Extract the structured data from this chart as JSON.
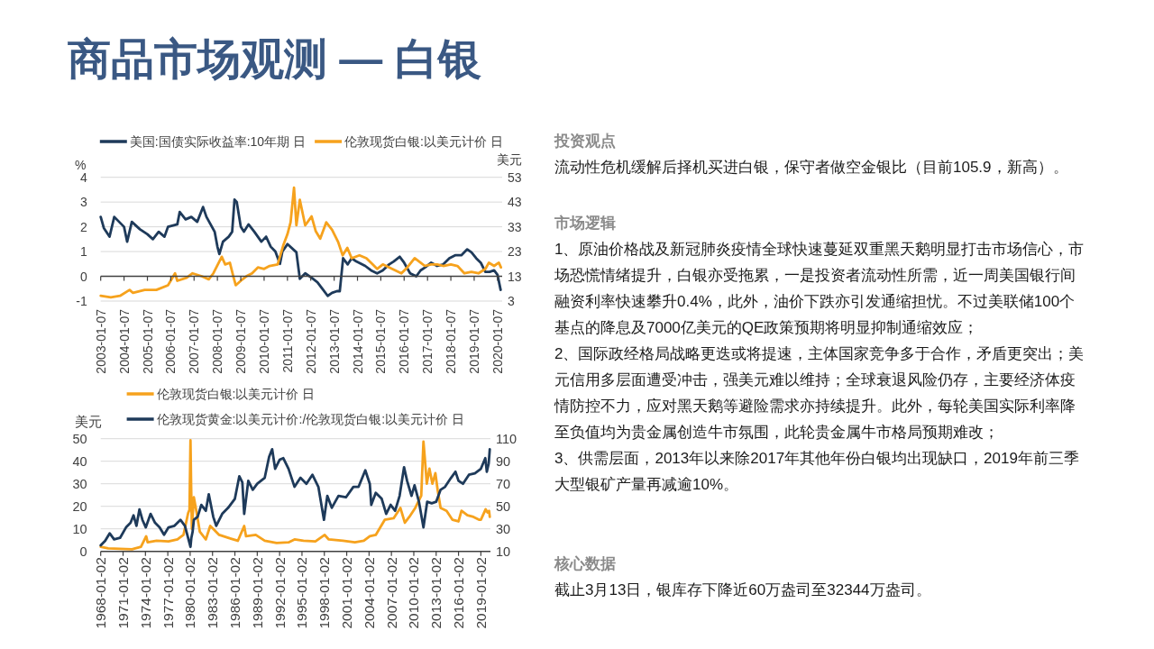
{
  "chart_data": [
    {
      "type": "other",
      "title": "商品市场观测 — 白银"
    },
    {
      "type": "line",
      "xlim": [
        "2003-01-07",
        "2020-03-20"
      ],
      "xticks": [
        "2003-01-07",
        "2004-01-07",
        "2005-01-07",
        "2006-01-07",
        "2007-01-07",
        "2008-01-07",
        "2009-01-07",
        "2010-01-07",
        "2011-01-07",
        "2012-01-07",
        "2013-01-07",
        "2014-01-07",
        "2015-01-07",
        "2016-01-07",
        "2017-01-07",
        "2018-01-07",
        "2019-01-07",
        "2020-01-07"
      ],
      "ylabel": "%",
      "ylim": [
        -1,
        4
      ],
      "yticks": [
        -1,
        0,
        1,
        2,
        3,
        4
      ],
      "y2label": "美元",
      "y2lim": [
        3,
        53
      ],
      "y2ticks": [
        3,
        13,
        23,
        33,
        43,
        53
      ],
      "grid": "y",
      "legend": "top",
      "series": [
        {
          "name": "美国:国债实际收益率:10年期 日",
          "color": "#1e3a5a",
          "x": [
            "2003-01-07",
            "2003-02-25",
            "2003-05-25",
            "2003-08-07",
            "2004-01-07",
            "2004-02-25",
            "2004-05-08",
            "2004-09-12",
            "2005-01-07",
            "2005-04-03",
            "2005-07-02",
            "2005-10-01",
            "2005-11-25",
            "2006-04-20",
            "2006-05-27",
            "2006-08-27",
            "2006-11-25",
            "2007-02-25",
            "2007-05-27",
            "2007-07-20",
            "2007-11-25",
            "2008-01-07",
            "2008-02-07",
            "2008-04-03",
            "2008-07-02",
            "2008-08-25",
            "2008-10-01",
            "2008-11-05",
            "2009-01-07",
            "2009-02-25",
            "2009-05-08",
            "2009-08-07",
            "2009-11-25",
            "2010-02-07",
            "2010-04-20",
            "2010-07-02",
            "2010-09-12",
            "2010-10-20",
            "2011-01-07",
            "2011-05-27",
            "2011-07-20",
            "2011-10-12",
            "2012-01-20",
            "2012-04-20",
            "2012-07-20",
            "2012-09-28",
            "2012-12-05",
            "2013-02-20",
            "2013-04-05",
            "2013-05-27",
            "2013-08-07",
            "2013-10-08",
            "2013-12-20",
            "2014-05-08",
            "2014-08-07",
            "2014-11-10",
            "2015-02-07",
            "2015-05-16",
            "2015-07-27",
            "2015-10-30",
            "2016-01-07",
            "2016-04-10",
            "2016-07-15",
            "2016-09-20",
            "2016-12-01",
            "2017-03-05",
            "2017-06-07",
            "2017-09-10",
            "2017-12-15",
            "2018-03-15",
            "2018-06-20",
            "2018-09-20",
            "2018-11-25",
            "2019-02-07",
            "2019-04-20",
            "2019-06-30",
            "2019-09-05",
            "2019-11-15",
            "2020-01-07",
            "2020-02-25"
          ],
          "values": [
            2.4,
            1.95,
            1.6,
            2.4,
            2.0,
            1.4,
            2.2,
            1.9,
            1.7,
            1.5,
            1.8,
            1.6,
            2.0,
            2.1,
            2.6,
            2.3,
            2.4,
            2.2,
            2.8,
            2.4,
            1.8,
            1.2,
            0.9,
            1.4,
            1.6,
            1.8,
            3.1,
            3.0,
            2.0,
            1.8,
            2.1,
            1.8,
            1.4,
            1.6,
            1.2,
            1.0,
            0.5,
            1.0,
            1.3,
            0.97,
            -0.1,
            0.12,
            -0.06,
            -0.24,
            -0.55,
            -0.79,
            -0.67,
            -0.6,
            -0.6,
            0.73,
            0.48,
            0.73,
            0.6,
            0.42,
            0.24,
            0.12,
            0.24,
            0.48,
            0.6,
            0.79,
            0.55,
            0.12,
            0.0,
            0.24,
            0.36,
            0.55,
            0.42,
            0.48,
            0.73,
            0.85,
            0.85,
            1.09,
            0.97,
            0.73,
            0.55,
            0.18,
            0.18,
            0.24,
            0.06,
            -0.55
          ]
        },
        {
          "name": "伦敦现货白银:以美元计价 日",
          "color": "#f6a21d",
          "axis": "y2",
          "x": [
            "2003-01-07",
            "2003-06-14",
            "2003-11-05",
            "2004-04-03",
            "2004-05-27",
            "2004-11-25",
            "2005-05-27",
            "2005-11-25",
            "2006-03-15",
            "2006-04-20",
            "2006-09-12",
            "2006-12-14",
            "2007-05-08",
            "2007-08-25",
            "2007-11-05",
            "2008-03-15",
            "2008-05-08",
            "2008-07-20",
            "2008-09-12",
            "2008-10-20",
            "2009-01-07",
            "2009-04-03",
            "2009-07-02",
            "2009-10-01",
            "2010-01-07",
            "2010-04-03",
            "2010-08-07",
            "2010-11-05",
            "2011-01-07",
            "2011-02-25",
            "2011-04-20",
            "2011-05-27",
            "2011-07-20",
            "2011-10-12",
            "2012-01-20",
            "2012-03-25",
            "2012-06-03",
            "2012-09-05",
            "2012-12-05",
            "2013-03-10",
            "2013-05-20",
            "2013-08-01",
            "2013-10-08",
            "2014-02-07",
            "2014-05-27",
            "2014-09-01",
            "2014-11-10",
            "2015-02-07",
            "2015-07-02",
            "2015-11-25",
            "2016-02-25",
            "2016-06-20",
            "2016-09-20",
            "2016-11-25",
            "2017-03-03",
            "2017-06-07",
            "2017-09-10",
            "2018-01-07",
            "2018-04-20",
            "2018-08-07",
            "2018-11-25",
            "2019-03-15",
            "2019-07-02",
            "2019-08-25",
            "2019-11-15",
            "2020-01-28",
            "2020-03-01"
          ],
          "values": [
            5.1,
            4.5,
            5.1,
            7.5,
            6.3,
            7.5,
            7.5,
            9.4,
            14.2,
            11.2,
            12.4,
            14.2,
            13.0,
            11.8,
            14.2,
            20.9,
            17.8,
            18.5,
            13.0,
            9.4,
            11.2,
            13.0,
            14.2,
            16.6,
            16.0,
            17.2,
            17.8,
            25.7,
            30.0,
            34.8,
            48.8,
            33.6,
            43.9,
            33.6,
            37.2,
            31.2,
            28.2,
            34.8,
            31.8,
            26.9,
            21.5,
            24.5,
            20.3,
            21.5,
            20.3,
            17.8,
            16.0,
            17.8,
            16.0,
            14.2,
            16.6,
            20.3,
            18.5,
            17.2,
            17.8,
            17.8,
            17.2,
            17.8,
            17.2,
            14.2,
            14.8,
            14.2,
            16.0,
            18.5,
            17.2,
            18.5,
            16.6
          ]
        }
      ]
    },
    {
      "type": "line",
      "xlim": [
        "1968-01-02",
        "2020-04-15"
      ],
      "xticks": [
        "1968-01-02",
        "1971-01-02",
        "1974-01-02",
        "1977-01-02",
        "1980-01-02",
        "1983-01-02",
        "1986-01-02",
        "1989-01-02",
        "1992-01-02",
        "1995-01-02",
        "1998-01-02",
        "2001-01-02",
        "2004-01-02",
        "2007-01-02",
        "2010-01-02",
        "2013-01-02",
        "2016-01-02",
        "2019-01-02"
      ],
      "ylabel": "美元",
      "ylim": [
        0,
        50
      ],
      "yticks": [
        0,
        10,
        20,
        30,
        40,
        50
      ],
      "y2lim": [
        10,
        110
      ],
      "y2ticks": [
        10,
        30,
        50,
        70,
        90,
        110
      ],
      "grid": "y",
      "legend": "top",
      "series": [
        {
          "name": "伦敦现货白银:以美元计价 日",
          "color": "#f6a21d",
          "x": [
            "1968-01-02",
            "1969-01-02",
            "1970-08-07",
            "1972-03-15",
            "1973-05-27",
            "1974-02-07",
            "1974-04-20",
            "1975-07-02",
            "1977-02-07",
            "1978-04-20",
            "1979-02-07",
            "1979-09-25",
            "1979-12-01",
            "1980-01-18",
            "1980-02-20",
            "1980-03-27",
            "1980-07-02",
            "1980-11-25",
            "1981-04-20",
            "1982-02-07",
            "1982-09-12",
            "1983-02-07",
            "1983-11-25",
            "1985-02-07",
            "1986-05-27",
            "1987-04-03",
            "1987-07-02",
            "1988-10-20",
            "1990-01-02",
            "1991-08-07",
            "1993-03-15",
            "1994-01-02",
            "1995-03-15",
            "1996-10-20",
            "1998-01-20",
            "1998-08-07",
            "2000-07-02",
            "2002-02-07",
            "2003-04-20",
            "2004-02-07",
            "2004-11-25",
            "2006-02-07",
            "2007-04-20",
            "2008-03-15",
            "2008-10-20",
            "2009-05-27",
            "2010-03-15",
            "2011-01-02",
            "2011-04-20",
            "2011-07-02",
            "2011-10-01",
            "2012-02-07",
            "2012-07-02",
            "2012-11-25",
            "2013-03-15",
            "2013-08-07",
            "2014-05-27",
            "2015-03-15",
            "2016-01-02",
            "2016-05-27",
            "2017-03-15",
            "2018-01-02",
            "2018-10-20",
            "2019-01-02",
            "2019-08-25",
            "2019-11-25",
            "2020-02-07",
            "2020-03-13"
          ],
          "values": [
            2.0,
            1.3,
            1.1,
            0.9,
            2.0,
            6.7,
            4.0,
            4.7,
            4.4,
            5.3,
            7.3,
            17.0,
            18.5,
            49.3,
            28.7,
            10.0,
            24.0,
            16.7,
            8.7,
            5.3,
            11.3,
            10.0,
            7.3,
            6.0,
            4.7,
            11.3,
            6.7,
            7.3,
            4.7,
            3.7,
            4.0,
            5.3,
            4.7,
            4.4,
            7.3,
            5.3,
            4.7,
            4.0,
            4.7,
            6.7,
            7.3,
            14.0,
            14.7,
            19.3,
            12.7,
            15.3,
            19.3,
            24.7,
            48.7,
            40.7,
            30.0,
            36.7,
            30.0,
            34.7,
            27.3,
            19.3,
            18.0,
            14.0,
            13.3,
            18.0,
            16.0,
            15.3,
            14.0,
            14.0,
            18.7,
            17.3,
            18.0,
            15.3
          ]
        },
        {
          "name": "伦敦现货黄金:以美元计价:/伦敦现货白银:以美元计价 日",
          "color": "#1e3a5a",
          "axis": "y2",
          "x": [
            "1968-01-02",
            "1968-08-07",
            "1969-03-15",
            "1969-10-20",
            "1970-08-07",
            "1971-05-27",
            "1972-01-02",
            "1972-05-27",
            "1972-10-20",
            "1973-03-15",
            "1973-08-07",
            "1974-01-20",
            "1974-09-12",
            "1975-04-20",
            "1975-11-25",
            "1976-07-02",
            "1977-02-07",
            "1977-11-25",
            "1978-09-12",
            "1979-04-20",
            "1980-01-18",
            "1980-03-01",
            "1980-05-01",
            "1980-07-02",
            "1981-01-02",
            "1981-07-02",
            "1982-02-07",
            "1982-07-02",
            "1983-02-07",
            "1983-07-02",
            "1984-04-20",
            "1985-02-07",
            "1986-01-02",
            "1986-08-07",
            "1987-01-02",
            "1987-04-03",
            "1987-10-20",
            "1988-05-27",
            "1989-01-02",
            "1990-01-02",
            "1990-08-07",
            "1991-01-02",
            "1991-05-27",
            "1992-01-02",
            "1992-07-02",
            "1993-03-15",
            "1994-01-02",
            "1994-10-20",
            "1995-08-07",
            "1996-05-27",
            "1997-03-15",
            "1997-12-14",
            "1998-05-27",
            "1999-01-02",
            "1999-11-25",
            "2000-11-25",
            "2001-11-25",
            "2002-08-07",
            "2003-07-02",
            "2004-02-07",
            "2004-04-20",
            "2004-11-25",
            "2005-09-12",
            "2006-04-20",
            "2006-11-25",
            "2007-07-02",
            "2008-02-07",
            "2008-09-12",
            "2009-02-07",
            "2009-09-12",
            "2010-02-07",
            "2010-09-12",
            "2011-04-20",
            "2011-10-20",
            "2012-05-27",
            "2013-01-02",
            "2013-08-07",
            "2014-03-15",
            "2015-01-02",
            "2015-08-07",
            "2016-01-02",
            "2016-08-07",
            "2017-05-27",
            "2018-03-15",
            "2019-01-02",
            "2019-08-07",
            "2019-10-20",
            "2020-01-20",
            "2020-03-13"
          ],
          "values": [
            15.3,
            19.3,
            26.0,
            20.7,
            22.0,
            31.3,
            35.3,
            42.0,
            32.7,
            47.3,
            38.0,
            31.3,
            43.3,
            35.3,
            31.3,
            24.7,
            31.3,
            32.7,
            38.0,
            32.7,
            14.0,
            22.0,
            27.3,
            38.0,
            40.7,
            51.3,
            46.0,
            60.7,
            40.7,
            32.7,
            43.3,
            48.7,
            56.7,
            76.7,
            71.3,
            43.3,
            72.7,
            64.7,
            70.0,
            75.3,
            94.0,
            100.7,
            83.3,
            91.3,
            92.7,
            83.3,
            67.3,
            75.3,
            70.0,
            78.0,
            67.3,
            38.0,
            59.3,
            48.7,
            59.3,
            58.0,
            67.3,
            67.3,
            82.0,
            70.0,
            51.3,
            62.0,
            56.7,
            43.3,
            51.3,
            46.0,
            59.3,
            84.7,
            72.7,
            59.3,
            68.7,
            54.0,
            31.3,
            54.0,
            52.7,
            54.0,
            64.7,
            67.3,
            75.3,
            80.7,
            72.7,
            70.0,
            78.0,
            79.3,
            83.3,
            92.7,
            80.7,
            88.0,
            100.7
          ]
        }
      ]
    },
    {
      "type": "other",
      "title": "投资观点",
      "annotations": [
        "流动性危机缓解后择机买进白银，保守者做空金银比（目前105.9，新高）。"
      ]
    },
    {
      "type": "other",
      "title": "市场逻辑",
      "annotations": [
        "1、原油价格战及新冠肺炎疫情全球快速蔓延双重黑天鹅明显打击市场信心，市场恐慌情绪提升，白银亦受拖累，一是投资者流动性所需，近一周美国银行间融资利率快速攀升0.4%，此外，油价下跌亦引发通缩担忧。不过美联储100个基点的降息及7000亿美元的QE政策预期将明显抑制通缩效应；",
        "2、国际政经格局战略更迭或将提速，主体国家竞争多于合作，矛盾更突出；美元信用多层面遭受冲击，强美元难以维持；全球衰退风险仍存，主要经济体疫情防控不力，应对黑天鹅等避险需求亦持续提升。此外，每轮美国实际利率降至负值均为贵金属创造牛市氛围，此轮贵金属牛市格局预期难改；",
        "3、供需层面，2013年以来除2017年其他年份白银均出现缺口，2019年前三季大型银矿产量再减逾10%。"
      ]
    },
    {
      "type": "other",
      "title": "核心数据",
      "annotations": [
        "截止3月13日，银库存下降近60万盎司至32344万盎司。"
      ]
    }
  ]
}
